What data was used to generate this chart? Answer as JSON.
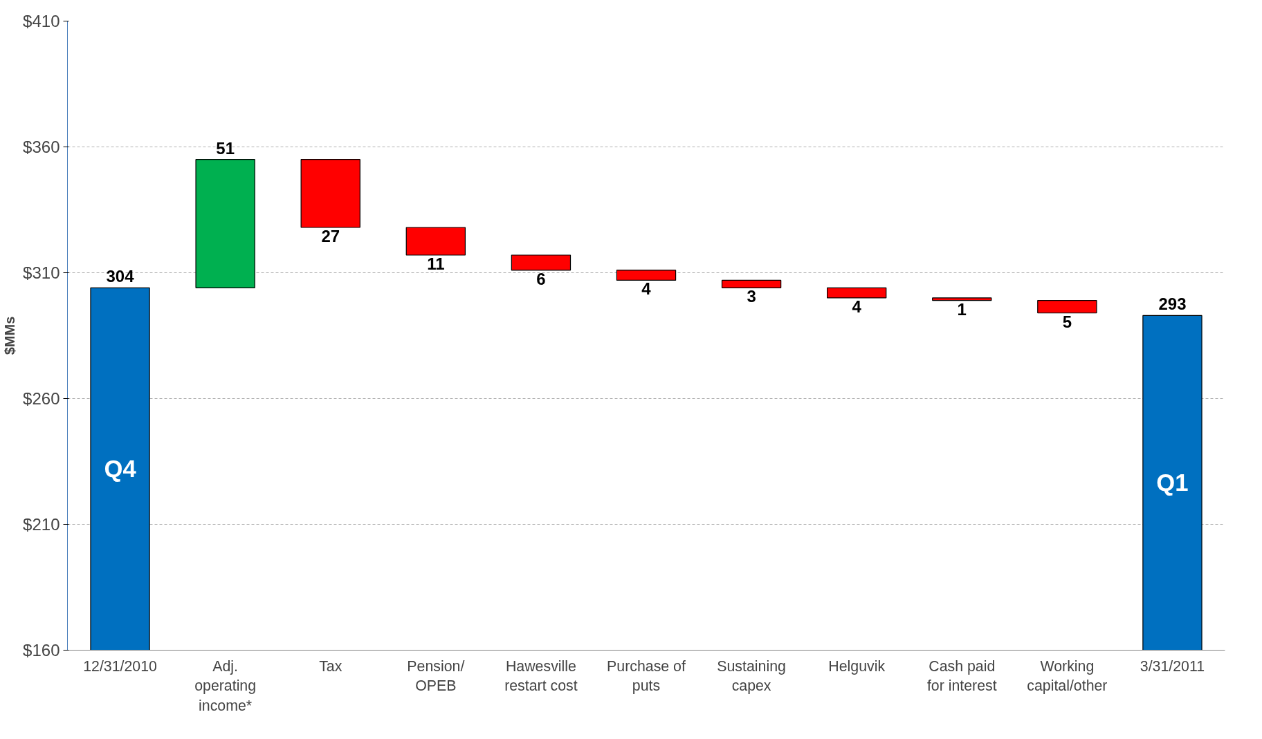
{
  "chart_data": {
    "type": "bar",
    "ylabel": "$MMs",
    "categories": [
      "12/31/2010",
      "Adj. operating income*",
      "Tax",
      "Pension/ OPEB",
      "Hawesville restart cost",
      "Purchase of puts",
      "Sustaining capex",
      "Helguvik",
      "Cash paid for interest",
      "Working capital/other",
      "3/31/2011"
    ],
    "base": [
      160,
      304,
      355,
      328,
      317,
      311,
      307,
      304,
      300,
      299,
      160
    ],
    "values": [
      144,
      51,
      -27,
      -11,
      -6,
      -4,
      -3,
      -4,
      -1,
      -5,
      133
    ],
    "value_labels": [
      "304",
      "51",
      "27",
      "11",
      "6",
      "4",
      "3",
      "4",
      "1",
      "5",
      "293"
    ],
    "colors": [
      "#0070c0",
      "#00b050",
      "#ff0000",
      "#ff0000",
      "#ff0000",
      "#ff0000",
      "#ff0000",
      "#ff0000",
      "#ff0000",
      "#ff0000",
      "#0070c0"
    ],
    "ylim": [
      160,
      410
    ],
    "yticks": [
      {
        "value": 160,
        "label": "$160"
      },
      {
        "value": 210,
        "label": "$210"
      },
      {
        "value": 260,
        "label": "$260"
      },
      {
        "value": 310,
        "label": "$310"
      },
      {
        "value": 360,
        "label": "$360"
      },
      {
        "value": 410,
        "label": "$410"
      }
    ],
    "grid": "y",
    "annotations": [
      "Q4",
      "Q1"
    ]
  }
}
